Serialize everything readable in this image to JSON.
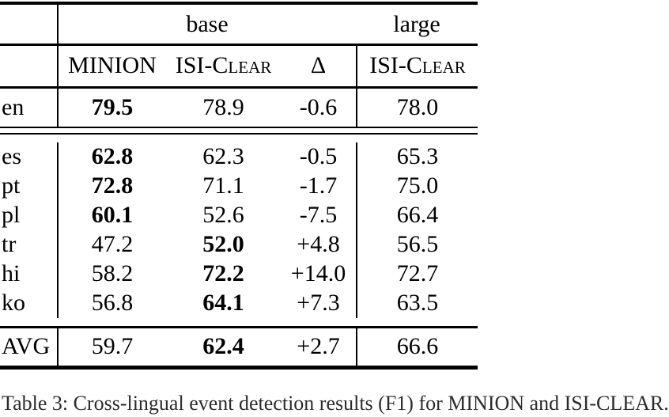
{
  "table": {
    "group_headers": {
      "base": "base",
      "large": "large"
    },
    "column_headers": {
      "minion": "MINION",
      "isi_clear_base": "ISI-Clear",
      "delta": "Δ",
      "isi_clear_large": "ISI-Clear"
    },
    "rows": [
      {
        "label": "en",
        "cells": [
          "79.5",
          "78.9",
          "-0.6",
          "78.0"
        ],
        "bold": [
          true,
          false,
          false,
          false
        ]
      },
      {
        "label": "es",
        "cells": [
          "62.8",
          "62.3",
          "-0.5",
          "65.3"
        ],
        "bold": [
          true,
          false,
          false,
          false
        ]
      },
      {
        "label": "pt",
        "cells": [
          "72.8",
          "71.1",
          "-1.7",
          "75.0"
        ],
        "bold": [
          true,
          false,
          false,
          false
        ]
      },
      {
        "label": "pl",
        "cells": [
          "60.1",
          "52.6",
          "-7.5",
          "66.4"
        ],
        "bold": [
          true,
          false,
          false,
          false
        ]
      },
      {
        "label": "tr",
        "cells": [
          "47.2",
          "52.0",
          "+4.8",
          "56.5"
        ],
        "bold": [
          false,
          true,
          false,
          false
        ]
      },
      {
        "label": "hi",
        "cells": [
          "58.2",
          "72.2",
          "+14.0",
          "72.7"
        ],
        "bold": [
          false,
          true,
          false,
          false
        ]
      },
      {
        "label": "ko",
        "cells": [
          "56.8",
          "64.1",
          "+7.3",
          "63.5"
        ],
        "bold": [
          false,
          true,
          false,
          false
        ]
      },
      {
        "label": "AVG",
        "cells": [
          "59.7",
          "62.4",
          "+2.7",
          "66.6"
        ],
        "bold": [
          false,
          true,
          false,
          false
        ]
      }
    ],
    "caption": "Table 3: Cross-lingual event detection results (F1) for MINION and ISI-CLEAR."
  },
  "colors": {
    "text": "#000000",
    "rule": "#000000",
    "background": "#ffffff"
  }
}
